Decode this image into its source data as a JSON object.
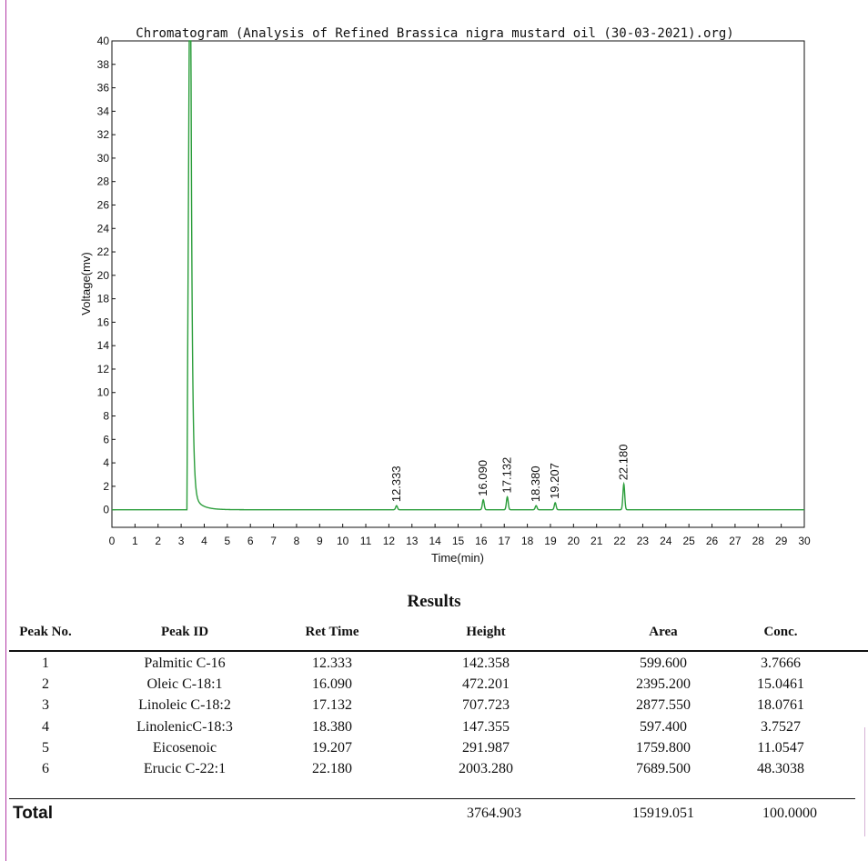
{
  "chart_data": {
    "type": "line",
    "title": "Chromatogram (Analysis of Refined Brassica nigra mustard oil (30-03-2021).org)",
    "xlabel": "Time(min)",
    "ylabel": "Voltage(mv)",
    "xlim": [
      0,
      30
    ],
    "ylim": [
      -1.5,
      40
    ],
    "x_ticks": [
      "0",
      "1",
      "2",
      "3",
      "4",
      "5",
      "6",
      "7",
      "8",
      "9",
      "10",
      "11",
      "12",
      "13",
      "14",
      "15",
      "16",
      "17",
      "18",
      "19",
      "20",
      "21",
      "22",
      "23",
      "24",
      "25",
      "26",
      "27",
      "28",
      "29",
      "30"
    ],
    "y_ticks": [
      "0",
      "2",
      "4",
      "6",
      "8",
      "10",
      "12",
      "14",
      "16",
      "18",
      "20",
      "22",
      "24",
      "26",
      "28",
      "30",
      "32",
      "34",
      "36",
      "38",
      "40"
    ],
    "grid": false,
    "solvent_peak": {
      "x": 3.4,
      "y": 40
    },
    "peaks": [
      {
        "rt": 12.333,
        "label": "12.333",
        "y": 0.35
      },
      {
        "rt": 16.09,
        "label": "16.090",
        "y": 0.85
      },
      {
        "rt": 17.132,
        "label": "17.132",
        "y": 1.1
      },
      {
        "rt": 18.38,
        "label": "18.380",
        "y": 0.35
      },
      {
        "rt": 19.207,
        "label": "19.207",
        "y": 0.6
      },
      {
        "rt": 22.18,
        "label": "22.180",
        "y": 2.2
      }
    ]
  },
  "results": {
    "title": "Results",
    "headers": [
      "Peak No.",
      "Peak ID",
      "Ret Time",
      "Height",
      "Area",
      "Conc."
    ],
    "rows": [
      [
        "1",
        "Palmitic C-16",
        "12.333",
        "142.358",
        "599.600",
        "3.7666"
      ],
      [
        "2",
        "Oleic C-18:1",
        "16.090",
        "472.201",
        "2395.200",
        "15.0461"
      ],
      [
        "3",
        "Linoleic C-18:2",
        "17.132",
        "707.723",
        "2877.550",
        "18.0761"
      ],
      [
        "4",
        "LinolenicC-18:3",
        "18.380",
        "147.355",
        "597.400",
        "3.7527"
      ],
      [
        "5",
        "Eicosenoic",
        "19.207",
        "291.987",
        "1759.800",
        "11.0547"
      ],
      [
        "6",
        "Erucic C-22:1",
        "22.180",
        "2003.280",
        "7689.500",
        "48.3038"
      ]
    ],
    "total_label": "Total",
    "total_height": "3764.903",
    "total_area": "15919.051",
    "total_conc": "100.0000"
  },
  "colors": {
    "trace": "#2a9d3a",
    "axis": "#111111",
    "text": "#111111"
  }
}
